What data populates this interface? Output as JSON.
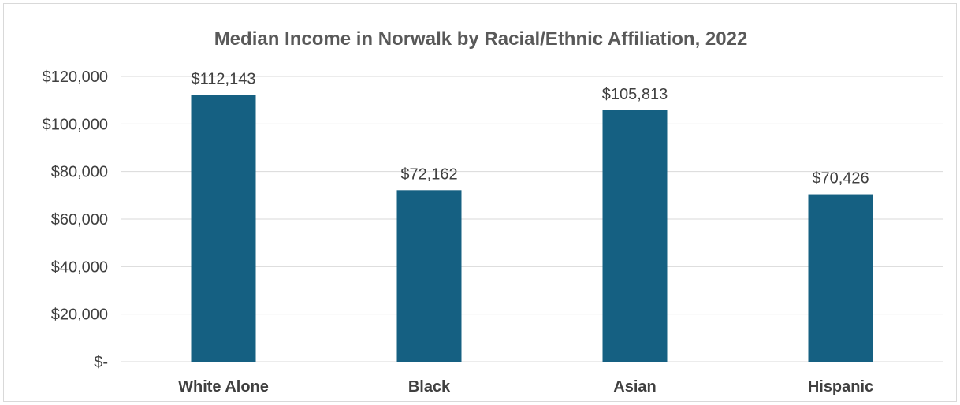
{
  "chart_data": {
    "type": "bar",
    "title": "Median Income in Norwalk by Racial/Ethnic Affiliation, 2022",
    "xlabel": "",
    "ylabel": "",
    "categories": [
      "White Alone",
      "Black",
      "Asian",
      "Hispanic"
    ],
    "values": [
      112143,
      72162,
      105813,
      70426
    ],
    "data_labels": [
      "$112,143",
      "$72,162",
      "$105,813",
      "$70,426"
    ],
    "ylim": [
      0,
      120000
    ],
    "yticks": [
      0,
      20000,
      40000,
      60000,
      80000,
      100000,
      120000
    ],
    "ytick_labels": [
      "$-",
      "$20,000",
      "$40,000",
      "$60,000",
      "$80,000",
      "$100,000",
      "$120,000"
    ],
    "grid": true,
    "legend": "none",
    "bar_color": "#156082",
    "grid_color": "#d9d9d9"
  }
}
